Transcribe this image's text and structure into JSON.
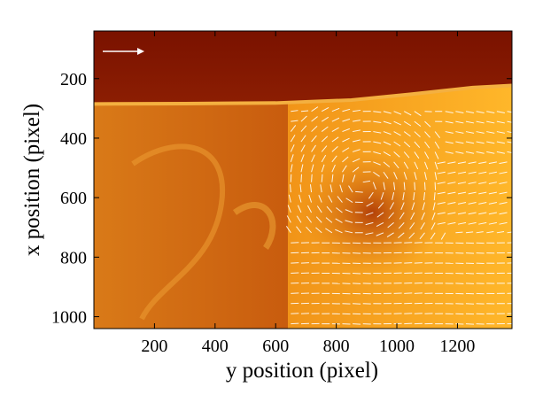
{
  "chart_data": {
    "type": "heatmap",
    "title": "",
    "xlabel": "y position (pixel)",
    "ylabel": "x position (pixel)",
    "x_range": [
      0,
      1380
    ],
    "y_range": [
      40,
      1040
    ],
    "y_axis_inverted": true,
    "x_ticks": [
      200,
      400,
      600,
      800,
      1000,
      1200
    ],
    "y_ticks": [
      200,
      400,
      600,
      800,
      1000
    ],
    "colormap": [
      "#6e0d00",
      "#a03a05",
      "#d86a0c",
      "#f5a01a",
      "#ffc43e"
    ],
    "interface_height": [
      {
        "y": 0,
        "x": 285
      },
      {
        "y": 300,
        "x": 284
      },
      {
        "y": 600,
        "x": 282
      },
      {
        "y": 850,
        "x": 272
      },
      {
        "y": 1050,
        "x": 252
      },
      {
        "y": 1250,
        "x": 230
      },
      {
        "y": 1380,
        "x": 223
      }
    ],
    "vector_field_region": {
      "y": [
        640,
        1380
      ],
      "x": [
        290,
        1040
      ]
    },
    "reference_arrow_color": "#ffffff"
  }
}
